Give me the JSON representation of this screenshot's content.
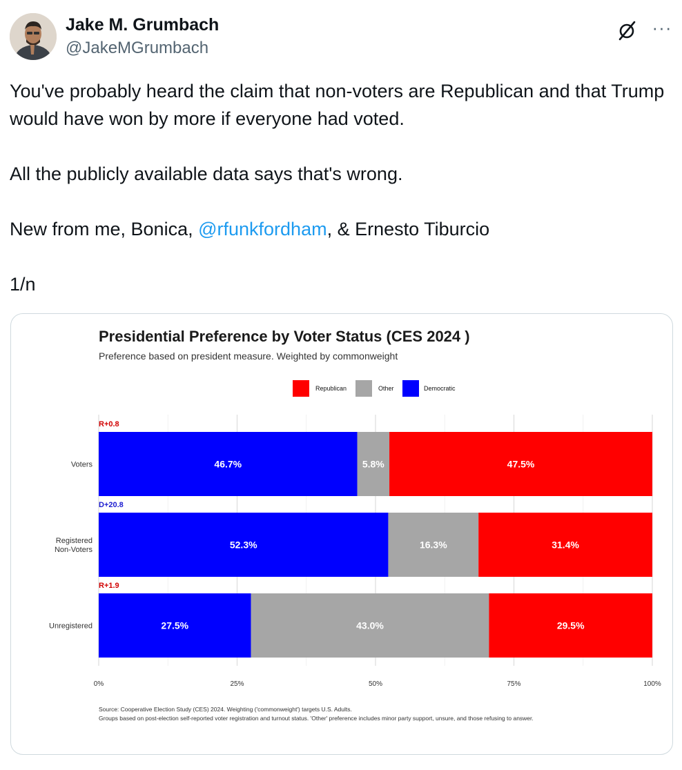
{
  "author": {
    "name": "Jake M. Grumbach",
    "handle": "@JakeMGrumbach"
  },
  "icons": {
    "grok": "grok-slash-icon",
    "more": "more-horizontal-icon"
  },
  "more_glyph": "···",
  "tweet": {
    "line1": "You've probably heard the claim that non-voters are Republican and that Trump would have won by more if everyone had voted.",
    "line2": "All the publicly available data says that's wrong.",
    "line3_prefix": "New from me, Bonica, ",
    "mention": "@rfunkfordham",
    "line3_suffix": ", & Ernesto Tiburcio",
    "line4": "1/n"
  },
  "colors": {
    "republican": "#ff0000",
    "other": "#a6a6a6",
    "democratic": "#0000ff",
    "link": "#1d9bf0"
  },
  "chart_data": {
    "type": "bar",
    "orientation": "horizontal",
    "stacked": true,
    "title": "Presidential Preference by Voter Status (CES 2024 )",
    "subtitle": "Preference based on president measure. Weighted by commonweight",
    "legend": [
      "Republican",
      "Other",
      "Democratic"
    ],
    "legend_position": "top",
    "categories": [
      "Voters",
      "Registered Non-Voters",
      "Unregistered"
    ],
    "category_labels": [
      [
        "Voters"
      ],
      [
        "Registered",
        "Non-Voters"
      ],
      [
        "Unregistered"
      ]
    ],
    "margins": [
      "R+0.8",
      "D+20.8",
      "R+1.9"
    ],
    "margin_party": [
      "republican",
      "democratic",
      "republican"
    ],
    "series": [
      {
        "name": "Democratic",
        "values": [
          46.7,
          52.3,
          27.5
        ],
        "labels": [
          "46.7%",
          "52.3%",
          "27.5%"
        ]
      },
      {
        "name": "Other",
        "values": [
          5.8,
          16.3,
          43.0
        ],
        "labels": [
          "5.8%",
          "16.3%",
          "43.0%"
        ]
      },
      {
        "name": "Republican",
        "values": [
          47.5,
          31.4,
          29.5
        ],
        "labels": [
          "47.5%",
          "31.4%",
          "29.5%"
        ]
      }
    ],
    "xticks": [
      "0%",
      "25%",
      "50%",
      "75%",
      "100%"
    ],
    "xlim": [
      0,
      100
    ],
    "grid": true,
    "source_lines": [
      "Source: Cooperative Election Study (CES) 2024. Weighting ('commonweight') targets U.S. Adults.",
      "Groups based on post-election self-reported voter registration and turnout status. 'Other' preference includes minor party support, unsure, and those refusing to answer."
    ]
  }
}
